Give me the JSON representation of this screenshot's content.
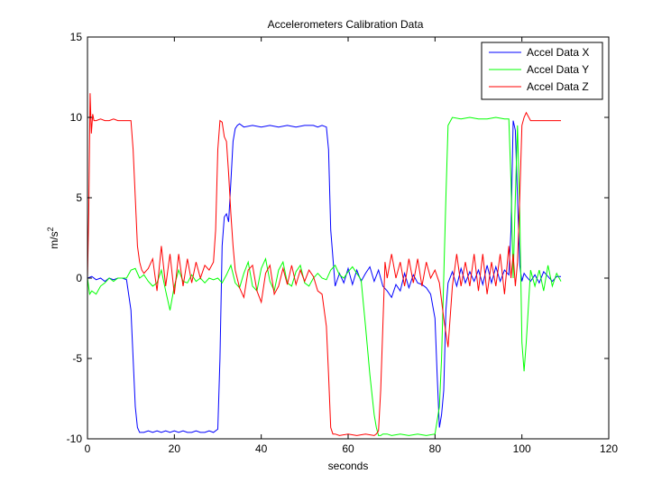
{
  "chart_data": {
    "type": "line",
    "title": "Accelerometers Calibration Data",
    "xlabel": "seconds",
    "ylabel_base": "m/s",
    "ylabel_sup": "2",
    "xlim": [
      0,
      120
    ],
    "ylim": [
      -10,
      15
    ],
    "xticks": [
      0,
      20,
      40,
      60,
      80,
      100,
      120
    ],
    "yticks": [
      -10,
      -5,
      0,
      5,
      10,
      15
    ],
    "grid": false,
    "legend_position": "top-right",
    "series": [
      {
        "name": "Accel Data X",
        "color": "#0000ff",
        "x": [
          0,
          1,
          2,
          3,
          4,
          5,
          6,
          7,
          8,
          9,
          10,
          10.5,
          11,
          11.5,
          12,
          13,
          14,
          15,
          16,
          17,
          18,
          19,
          20,
          21,
          22,
          23,
          24,
          25,
          26,
          27,
          28,
          29,
          30,
          30.5,
          31,
          31.5,
          32,
          32.5,
          33,
          33.5,
          34,
          34.5,
          35,
          36,
          38,
          40,
          42,
          44,
          46,
          48,
          50,
          52,
          53,
          54,
          55,
          55.5,
          56,
          57,
          58,
          59,
          60,
          61,
          62,
          63,
          64,
          65,
          66,
          67,
          68,
          69,
          70,
          71,
          72,
          73,
          74,
          75,
          76,
          77,
          78,
          79,
          80,
          80.5,
          81,
          81.5,
          82,
          82.5,
          83,
          84,
          85,
          86,
          87,
          88,
          89,
          90,
          91,
          92,
          93,
          94,
          95,
          96,
          97,
          97.5,
          98,
          98.5,
          99,
          99.5,
          100,
          100.5,
          101,
          102,
          103,
          104,
          105,
          106,
          107,
          108,
          109
        ],
        "y": [
          0,
          0.1,
          -0.1,
          0,
          -0.2,
          0,
          -0.1,
          0,
          0,
          -0.1,
          -2,
          -5,
          -8,
          -9.3,
          -9.6,
          -9.6,
          -9.5,
          -9.6,
          -9.5,
          -9.6,
          -9.5,
          -9.6,
          -9.5,
          -9.6,
          -9.5,
          -9.6,
          -9.6,
          -9.5,
          -9.6,
          -9.6,
          -9.5,
          -9.6,
          -9.4,
          -5,
          2,
          3.8,
          4,
          3.5,
          6,
          8.5,
          9.3,
          9.5,
          9.6,
          9.4,
          9.5,
          9.4,
          9.5,
          9.4,
          9.5,
          9.4,
          9.5,
          9.5,
          9.4,
          9.5,
          9.4,
          8,
          3,
          -0.5,
          0.3,
          -0.3,
          0.6,
          -0.4,
          0.5,
          -0.2,
          0.3,
          0.7,
          -0.2,
          0.5,
          -0.5,
          -0.8,
          -1.2,
          -0.4,
          -0.8,
          0.3,
          -0.6,
          0.2,
          -0.3,
          -0.4,
          -0.6,
          -1,
          -2.5,
          -6,
          -9.3,
          -8.5,
          -7,
          -2,
          -0.3,
          0.4,
          -0.5,
          0.6,
          -0.3,
          0.4,
          -0.2,
          0.5,
          -0.4,
          0.8,
          -0.3,
          0.7,
          -0.2,
          0.5,
          0.2,
          3,
          9.8,
          9.2,
          5,
          0.8,
          -0.2,
          0.3,
          0.1,
          -0.2,
          0.2,
          -0.3,
          0.4,
          0.1,
          -0.2,
          0.1,
          0.1
        ]
      },
      {
        "name": "Accel Data Y",
        "color": "#00ff00",
        "x": [
          0,
          0.5,
          1,
          2,
          3,
          4,
          5,
          6,
          7,
          8,
          9,
          10,
          11,
          12,
          13,
          14,
          15,
          16,
          17,
          18,
          19,
          20,
          21,
          22,
          23,
          24,
          25,
          26,
          27,
          28,
          29,
          30,
          31,
          32,
          33,
          34,
          35,
          36,
          37,
          38,
          39,
          40,
          41,
          42,
          43,
          44,
          45,
          46,
          47,
          48,
          49,
          50,
          51,
          52,
          53,
          54,
          55,
          56,
          57,
          58,
          59,
          60,
          61,
          62,
          63,
          64,
          65,
          66,
          66.5,
          67,
          67.5,
          68,
          69,
          70,
          72,
          74,
          76,
          78,
          80,
          81,
          81.5,
          82,
          82.5,
          83,
          84,
          86,
          88,
          90,
          92,
          94,
          96,
          97,
          97.5,
          98,
          98.5,
          99,
          99.5,
          100,
          100.5,
          101,
          102,
          103,
          104,
          105,
          106,
          107,
          108,
          109
        ],
        "y": [
          0,
          -1,
          -0.8,
          -1,
          -0.5,
          -0.3,
          0,
          -0.2,
          0,
          0,
          0,
          0.5,
          0.6,
          0,
          0.2,
          -0.2,
          -0.5,
          -0.3,
          0.5,
          -0.8,
          -2,
          -0.5,
          0.5,
          -0.2,
          -0.3,
          0.2,
          -0.2,
          0,
          -0.3,
          0,
          -0.1,
          0,
          -0.3,
          0.2,
          0.8,
          -0.3,
          -0.6,
          0.3,
          1,
          -0.5,
          -0.8,
          0.6,
          1.2,
          -0.2,
          -0.8,
          0.5,
          1,
          -0.3,
          -0.5,
          0.4,
          0.8,
          -0.3,
          -0.5,
          0,
          0.3,
          0,
          -0.1,
          0.5,
          0.8,
          0.2,
          0,
          0.4,
          0.7,
          0.3,
          -0.1,
          -3,
          -6,
          -8.5,
          -9.3,
          -9.8,
          -9.8,
          -9.7,
          -9.7,
          -9.8,
          -9.7,
          -9.8,
          -9.7,
          -9.8,
          -9.7,
          -8,
          -5,
          0,
          5,
          9.5,
          10,
          9.9,
          10,
          9.9,
          9.9,
          10,
          9.9,
          9.9,
          6,
          0,
          5,
          9.5,
          4,
          -4,
          -5.8,
          -4,
          0.5,
          -0.5,
          0.5,
          -0.8,
          0.8,
          -0.5,
          0.3,
          -0.2
        ]
      },
      {
        "name": "Accel Data Z",
        "color": "#ff0000",
        "x": [
          0,
          0.3,
          0.6,
          0.9,
          1.2,
          1.5,
          2,
          3,
          4,
          5,
          6,
          7,
          8,
          9,
          10,
          10.5,
          11,
          11.5,
          12,
          12.5,
          13,
          14,
          15,
          16,
          17,
          18,
          19,
          20,
          21,
          22,
          23,
          24,
          25,
          26,
          27,
          28,
          29,
          29.5,
          30,
          30.5,
          31,
          31.5,
          32,
          32.5,
          33,
          33.5,
          34,
          35,
          36,
          37,
          38,
          39,
          40,
          41,
          42,
          43,
          44,
          45,
          46,
          47,
          48,
          49,
          50,
          51,
          52,
          53,
          54,
          55,
          55.5,
          56,
          56.5,
          57,
          58,
          60,
          62,
          64,
          66,
          66.5,
          67,
          67.5,
          68,
          68.5,
          69,
          70,
          71,
          72,
          73,
          74,
          75,
          76,
          77,
          78,
          79,
          80,
          81,
          82,
          83,
          84,
          85,
          86,
          87,
          88,
          89,
          90,
          91,
          92,
          93,
          94,
          95,
          96,
          97,
          97.5,
          98,
          98.5,
          99,
          99.5,
          100,
          100.5,
          101,
          102,
          104,
          106,
          108,
          109
        ],
        "y": [
          0,
          4,
          11.5,
          9,
          10.2,
          9.8,
          9.8,
          9.9,
          9.8,
          9.8,
          9.9,
          9.8,
          9.8,
          9.8,
          9.8,
          8,
          5,
          2,
          1,
          0.5,
          0.3,
          0.6,
          1.2,
          -0.8,
          2,
          -0.5,
          1.5,
          -1,
          1.5,
          -0.5,
          1.2,
          -0.3,
          1,
          0,
          0.8,
          0.5,
          1,
          3,
          8,
          9.8,
          9.7,
          8.8,
          8.5,
          6.5,
          4,
          2,
          0.5,
          -0.6,
          -1.2,
          0.5,
          0.8,
          -0.8,
          -1.5,
          0.3,
          0.8,
          -1,
          -0.5,
          0.6,
          -0.4,
          0.8,
          -0.4,
          0.5,
          -0.2,
          0.5,
          0.1,
          -0.8,
          -1,
          -3,
          -6,
          -9.3,
          -9.7,
          -9.7,
          -9.8,
          -9.7,
          -9.8,
          -9.7,
          -9.8,
          -9.7,
          -9.5,
          -7,
          -3,
          1,
          0,
          1.5,
          0,
          1,
          -0.5,
          1.2,
          -0.3,
          1.2,
          -0.5,
          1,
          0,
          0.5,
          -0.3,
          -2.5,
          -4.3,
          -0.5,
          1.5,
          -0.5,
          1,
          -0.5,
          1.5,
          -0.8,
          1.5,
          -1,
          1,
          -0.5,
          1.5,
          -1,
          2,
          0,
          1.5,
          -0.5,
          1,
          5,
          9.5,
          10,
          10.3,
          9.8,
          9.8,
          9.8,
          9.8,
          9.8
        ]
      }
    ]
  }
}
